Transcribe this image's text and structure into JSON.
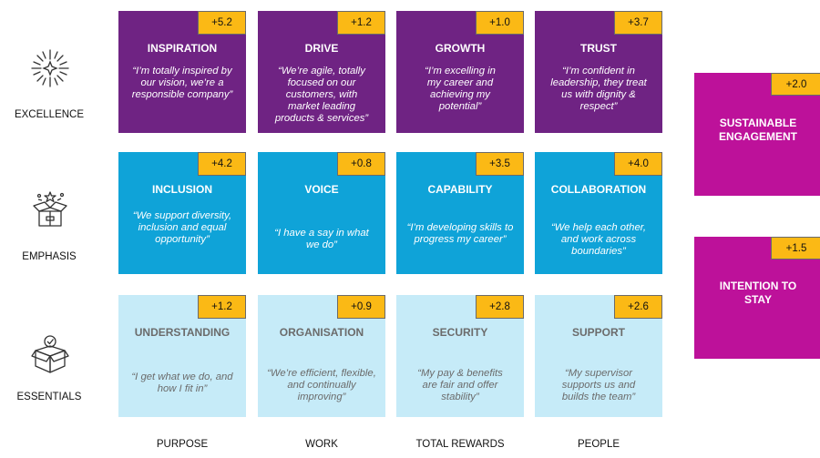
{
  "rows": [
    {
      "label": "EXCELLENCE",
      "icon": "sparkle-burst-icon"
    },
    {
      "label": "EMPHASIS",
      "icon": "open-gift-box-icon"
    },
    {
      "label": "ESSENTIALS",
      "icon": "checked-box-icon"
    }
  ],
  "columns": [
    "PURPOSE",
    "WORK",
    "TOTAL REWARDS",
    "PEOPLE"
  ],
  "tiles": [
    [
      {
        "title": "INSPIRATION",
        "score": "+5.2",
        "quote": "“I’m totally inspired by our vision, we’re a responsible company”"
      },
      {
        "title": "DRIVE",
        "score": "+1.2",
        "quote": "“We’re agile, totally focused on our customers, with market leading products & services”"
      },
      {
        "title": "GROWTH",
        "score": "+1.0",
        "quote": "“I’m excelling in my career and achieving my potential”"
      },
      {
        "title": "TRUST",
        "score": "+3.7",
        "quote": "“I’m confident in leadership, they treat us with dignity & respect”"
      }
    ],
    [
      {
        "title": "INCLUSION",
        "score": "+4.2",
        "quote": "“We support diversity, inclusion and equal opportunity”"
      },
      {
        "title": "VOICE",
        "score": "+0.8",
        "quote": "“I have a say in what we do”"
      },
      {
        "title": "CAPABILITY",
        "score": "+3.5",
        "quote": "“I’m developing skills to progress my career”"
      },
      {
        "title": "COLLABORATION",
        "score": "+4.0",
        "quote": "“We help each other, and work across boundaries”"
      }
    ],
    [
      {
        "title": "UNDERSTANDING",
        "score": "+1.2",
        "quote": "“I get what we do, and how I fit in”"
      },
      {
        "title": "ORGANISATION",
        "score": "+0.9",
        "quote": "“We’re efficient, flexible, and continually improving”"
      },
      {
        "title": "SECURITY",
        "score": "+2.8",
        "quote": "“My pay & benefits are fair and offer stability”"
      },
      {
        "title": "SUPPORT",
        "score": "+2.6",
        "quote": "“My supervisor supports us and builds the team”"
      }
    ]
  ],
  "outcomes": [
    {
      "title": "SUSTAINABLE ENGAGEMENT",
      "score": "+2.0"
    },
    {
      "title": "INTENTION TO STAY",
      "score": "+1.5"
    }
  ],
  "colors": {
    "excellence": "#6f2383",
    "emphasis": "#0fa3d8",
    "essentials": "#c6ebf8",
    "outcome": "#bd119a",
    "badge": "#fbb915"
  }
}
